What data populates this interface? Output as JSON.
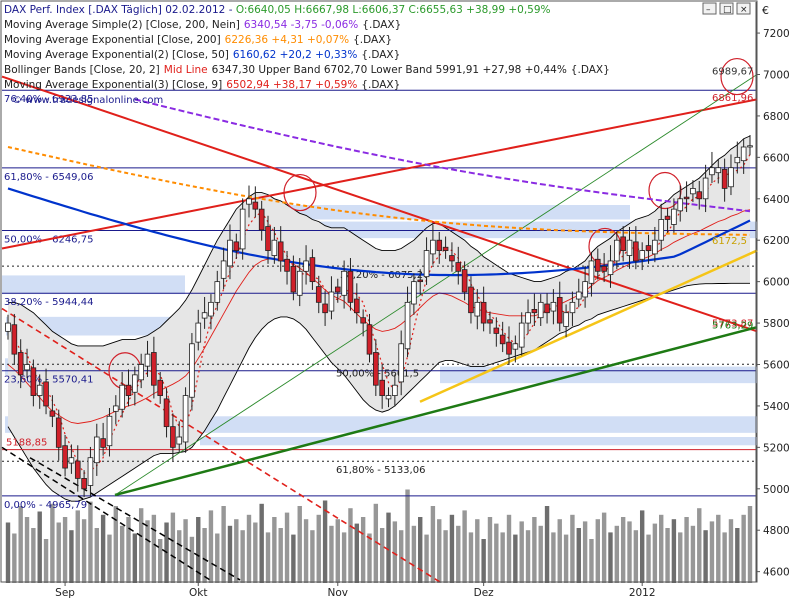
{
  "header": {
    "line1": {
      "prefix": "DAX Perf. Index [.DAX Täglich] 02.02.2012 - ",
      "ohlc": "O:6640,05 H:6667,98 L:6606,37 C:6655,63 +38,99 +0,59%"
    },
    "indicators": [
      {
        "name": "Moving Average Simple(2) [Close, 200, Nein]",
        "value": "6340,54 -3,75 -0,06%",
        "suffix": "{.DAX}",
        "color": "#8a2be2"
      },
      {
        "name": "Moving Average Exponential [Close, 200]",
        "value": "6226,36 +4,31 +0,07%",
        "suffix": "{.DAX}",
        "color": "#ff8c00"
      },
      {
        "name": "Moving Average Exponential(2) [Close, 50]",
        "value": "6160,62 +20,2 +0,33%",
        "suffix": "{.DAX}",
        "color": "#0033cc"
      },
      {
        "name": "Bollinger Bands [Close, 20, 2]",
        "midlabel": "Mid Line",
        "value": "6347,30 Upper Band 6702,70 Lower Band 5991,91 +27,98 +0,44%",
        "suffix": "{.DAX}",
        "color": "#e0201b"
      },
      {
        "name": "Moving Average Exponential(3) [Close, 9]",
        "value": "6502,94 +38,17 +0,59%",
        "suffix": "{.DAX}",
        "color": "#e0201b"
      }
    ]
  },
  "watermark": "© www.tradesignalonline.com",
  "currency_symbol": "€",
  "colors": {
    "up_candle": "#ffffff",
    "down_candle": "#d0202a",
    "bollinger_fill": "#e6e6e6",
    "zone_blue": "#c9d8f3",
    "fib_line": "#1a1a8c",
    "trend_red": "#e0201b",
    "trend_green": "#1e7a14",
    "trend_yellow": "#f5c518",
    "volume_bar": "#8c8c8c"
  },
  "chart_data": {
    "type": "candlestick",
    "title": "DAX Perf. Index [.DAX Täglich]",
    "xlabel": "",
    "ylabel": "",
    "ylim": [
      4550,
      7350
    ],
    "yticks": [
      4600,
      4800,
      5000,
      5200,
      5400,
      5600,
      5800,
      6000,
      6200,
      6400,
      6600,
      6800,
      7000,
      7200
    ],
    "ytick_labels": [
      "4600",
      "4800",
      "5000",
      "5200",
      "5400",
      "5600",
      "5800",
      "6000",
      "6200",
      "6400",
      "6600",
      "6800",
      "7000",
      "7200"
    ],
    "xtick_labels": [
      "Sep",
      "Okt",
      "Nov",
      "Dez",
      "2012"
    ],
    "xtick_index": [
      9,
      30,
      52,
      75,
      100
    ],
    "n_bars": 118,
    "close": [
      5800,
      5650,
      5550,
      5600,
      5450,
      5500,
      5400,
      5350,
      5200,
      5100,
      5150,
      5050,
      5000,
      5150,
      5250,
      5200,
      5350,
      5400,
      5500,
      5450,
      5550,
      5600,
      5650,
      5500,
      5450,
      5300,
      5200,
      5250,
      5450,
      5700,
      5800,
      5850,
      5900,
      6000,
      6100,
      6200,
      6150,
      6350,
      6400,
      6350,
      6250,
      6150,
      6200,
      6100,
      6050,
      5950,
      6050,
      6100,
      6000,
      5900,
      5850,
      5950,
      5950,
      6050,
      5900,
      5850,
      5800,
      5650,
      5500,
      5450,
      5450,
      5500,
      5700,
      5900,
      6000,
      6000,
      6150,
      6200,
      6150,
      6150,
      6100,
      6050,
      5950,
      5850,
      5900,
      5800,
      5800,
      5750,
      5700,
      5650,
      5700,
      5800,
      5850,
      5850,
      5900,
      5850,
      5900,
      5800,
      5850,
      5900,
      5950,
      6000,
      6100,
      6050,
      6050,
      6100,
      6200,
      6150,
      6200,
      6100,
      6150,
      6150,
      6200,
      6300,
      6300,
      6350,
      6400,
      6400,
      6450,
      6400,
      6500,
      6550,
      6550,
      6450,
      6550,
      6600,
      6650,
      6656
    ],
    "bb_upper": [
      5900,
      5900,
      5890,
      5870,
      5850,
      5820,
      5790,
      5760,
      5740,
      5720,
      5700,
      5690,
      5690,
      5690,
      5690,
      5690,
      5700,
      5710,
      5720,
      5720,
      5720,
      5730,
      5740,
      5760,
      5780,
      5810,
      5840,
      5870,
      5910,
      5960,
      6020,
      6080,
      6140,
      6200,
      6250,
      6300,
      6350,
      6380,
      6410,
      6430,
      6430,
      6420,
      6400,
      6390,
      6370,
      6350,
      6330,
      6320,
      6300,
      6290,
      6270,
      6260,
      6260,
      6260,
      6240,
      6220,
      6200,
      6180,
      6160,
      6150,
      6150,
      6150,
      6160,
      6180,
      6200,
      6230,
      6260,
      6280,
      6280,
      6260,
      6240,
      6220,
      6200,
      6170,
      6150,
      6120,
      6100,
      6080,
      6060,
      6040,
      6030,
      6020,
      6010,
      6000,
      6000,
      6010,
      6020,
      6030,
      6050,
      6060,
      6080,
      6100,
      6140,
      6170,
      6190,
      6210,
      6240,
      6260,
      6280,
      6300,
      6310,
      6320,
      6340,
      6370,
      6390,
      6420,
      6440,
      6460,
      6480,
      6500,
      6530,
      6560,
      6590,
      6610,
      6640,
      6660,
      6690,
      6703
    ],
    "bb_lower": [
      5300,
      5250,
      5200,
      5150,
      5100,
      5060,
      5020,
      4990,
      4970,
      4950,
      4940,
      4940,
      4950,
      4960,
      4980,
      5000,
      5020,
      5040,
      5060,
      5080,
      5100,
      5120,
      5140,
      5160,
      5170,
      5170,
      5170,
      5175,
      5180,
      5200,
      5240,
      5280,
      5330,
      5380,
      5440,
      5500,
      5560,
      5620,
      5680,
      5730,
      5770,
      5800,
      5820,
      5830,
      5830,
      5820,
      5800,
      5770,
      5730,
      5690,
      5650,
      5610,
      5580,
      5550,
      5510,
      5470,
      5430,
      5400,
      5380,
      5370,
      5380,
      5400,
      5430,
      5460,
      5490,
      5520,
      5550,
      5580,
      5610,
      5620,
      5620,
      5610,
      5600,
      5590,
      5590,
      5590,
      5600,
      5610,
      5620,
      5630,
      5640,
      5650,
      5660,
      5670,
      5690,
      5710,
      5730,
      5750,
      5760,
      5780,
      5790,
      5810,
      5820,
      5840,
      5850,
      5860,
      5870,
      5880,
      5890,
      5900,
      5910,
      5920,
      5930,
      5940,
      5950,
      5960,
      5970,
      5980,
      5985,
      5988,
      5990,
      5990,
      5991,
      5991,
      5992,
      5992,
      5992,
      5992
    ],
    "series": [
      {
        "name": "Moving Average Simple(2) [Close, 200, Nein]",
        "color": "#8a2be2",
        "start": 20,
        "first": 6880,
        "last": 6340
      },
      {
        "name": "Moving Average Exponential [Close, 200]",
        "color": "#ff8c00",
        "start": 0,
        "first": 6650,
        "last": 6226
      },
      {
        "name": "Moving Average Exponential(2) [Close, 50]",
        "color": "#0033cc",
        "start": 0,
        "first": 6450,
        "last": 6160
      },
      {
        "name": "Moving Average Exponential(3) [Close, 9]",
        "color": "#e0201b",
        "start": 0,
        "first": 5700,
        "last": 6503
      }
    ],
    "fibonacci": [
      {
        "label": "76,40% - 6923,85",
        "value": 6924
      },
      {
        "label": "61,80% - 6549,06",
        "value": 6549
      },
      {
        "label": "50,00% - 6246,75",
        "value": 6247
      },
      {
        "label": "38,20% - 5944,44",
        "value": 5944
      },
      {
        "label": "23,60% - 5570,41",
        "value": 5570
      },
      {
        "label": "0,00% - 4965,79",
        "value": 4966
      }
    ],
    "fib_lower": [
      {
        "label": "50,00% - 5601,5",
        "value": 5601
      },
      {
        "label": "61,80% - 5133,06",
        "value": 5133
      }
    ],
    "level_labels": [
      {
        "label": "38,20% - 6075,27",
        "value": 6075
      },
      {
        "label": "5188,85",
        "value": 5189
      }
    ],
    "right_labels": [
      {
        "label": "6989,67",
        "value": 6990,
        "color": "#333333"
      },
      {
        "label": "6861,96",
        "value": 6862,
        "color": "#d0202a"
      },
      {
        "label": "6172,5",
        "value": 6172,
        "color": "#c8a000"
      },
      {
        "label": "5773,87",
        "value": 5774,
        "color": "#d0202a"
      },
      {
        "label": "5763,29",
        "value": 5763,
        "color": "#1e7a14"
      }
    ],
    "volume": [
      55,
      45,
      70,
      60,
      50,
      65,
      40,
      72,
      55,
      60,
      48,
      66,
      58,
      74,
      50,
      62,
      44,
      70,
      52,
      60,
      45,
      68,
      57,
      62,
      40,
      55,
      64,
      48,
      58,
      42,
      60,
      50,
      66,
      45,
      70,
      52,
      58,
      48,
      62,
      55,
      72,
      46,
      60,
      50,
      64,
      44,
      70,
      58,
      48,
      62,
      75,
      52,
      58,
      46,
      68,
      54,
      60,
      45,
      72,
      50,
      64,
      56,
      48,
      85,
      52,
      60,
      44,
      70,
      58,
      48,
      62,
      52,
      66,
      46,
      58,
      40,
      60,
      54,
      46,
      62,
      44,
      56,
      48,
      60,
      52,
      70,
      46,
      58,
      44,
      62,
      50,
      56,
      40,
      58,
      64,
      46,
      52,
      60,
      56,
      48,
      66,
      44,
      54,
      62,
      50,
      58,
      46,
      60,
      52,
      68,
      48,
      56,
      62,
      46,
      58,
      50,
      62,
      70
    ]
  }
}
